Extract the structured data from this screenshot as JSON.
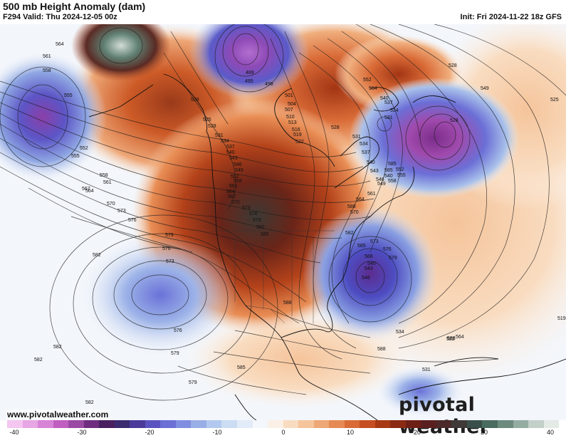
{
  "header": {
    "title": "500 mb Height Anomaly (dam)",
    "valid": "F294 Valid: Thu 2024-12-05 00z",
    "init": "Init: Fri 2024-11-22 18z GFS"
  },
  "footer": {
    "website": "www.pivotalweather.com",
    "brand": "pivotal weather"
  },
  "colorbar": {
    "ticks": [
      "-40",
      "-30",
      "-20",
      "-10",
      "0",
      "10",
      "20",
      "30",
      "40"
    ],
    "colors": [
      "#f4c6f0",
      "#e7a6e4",
      "#d784d6",
      "#c05fc0",
      "#9b4aa3",
      "#6e2d7f",
      "#4a1f5f",
      "#3a2a6e",
      "#4b3a9a",
      "#5b53c0",
      "#6b6fd6",
      "#7f8ee0",
      "#98aee6",
      "#b2c8ee",
      "#cbdcf3",
      "#e2ebf8",
      "#f4f7fb",
      "#fbf0e6",
      "#f9dcc0",
      "#f5c49b",
      "#eea777",
      "#e58a55",
      "#d96b37",
      "#c54e22",
      "#a83915",
      "#8a2a13",
      "#6e2016",
      "#5a1f1f",
      "#4c2a2a",
      "#3f3a38",
      "#3b4f4a",
      "#4a6b60",
      "#6c8a7e",
      "#95aca2",
      "#c2d0c9",
      "#e4eae6"
    ]
  },
  "map": {
    "contour_labels": [
      "564",
      "561",
      "558",
      "555",
      "552",
      "555",
      "558",
      "561",
      "564",
      "567",
      "570",
      "573",
      "576",
      "579",
      "582",
      "582",
      "582",
      "579",
      "576",
      "573",
      "576",
      "579",
      "582",
      "585",
      "588",
      "588",
      "528",
      "525",
      "528",
      "531",
      "534",
      "537",
      "540",
      "543",
      "546",
      "549",
      "552",
      "558",
      "561",
      "564",
      "567",
      "570",
      "573",
      "576",
      "579",
      "582",
      "585",
      "489",
      "495",
      "498",
      "501",
      "504",
      "507",
      "510",
      "513",
      "516",
      "519",
      "522",
      "528",
      "531",
      "534",
      "537",
      "540",
      "543",
      "546",
      "549",
      "552",
      "555",
      "558",
      "561",
      "564",
      "570",
      "573",
      "576",
      "579",
      "582",
      "585",
      "588",
      "540",
      "543",
      "546",
      "549",
      "552",
      "564",
      "540",
      "537",
      "534",
      "531",
      "528",
      "525",
      "519",
      "522",
      "564",
      "588",
      "588",
      "585",
      "585",
      "540",
      "534",
      "531",
      "528"
    ]
  }
}
